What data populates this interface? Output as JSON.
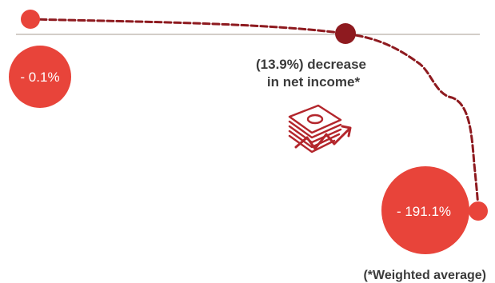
{
  "colors": {
    "bubble": "#e8443a",
    "dot_dark": "#8e1a1f",
    "path": "#8e1a1f",
    "baseline": "#b9b0a8",
    "text": "#3b3b3b",
    "icon": "#b3262c"
  },
  "left_bubble": {
    "label": "- 0.1%"
  },
  "right_bubble": {
    "label": "- 191.1%"
  },
  "center_note": {
    "line1": "(13.9%) decrease",
    "line2": "in net income*"
  },
  "footnote": "(*Weighted average)",
  "icon": "money-decline-icon"
}
